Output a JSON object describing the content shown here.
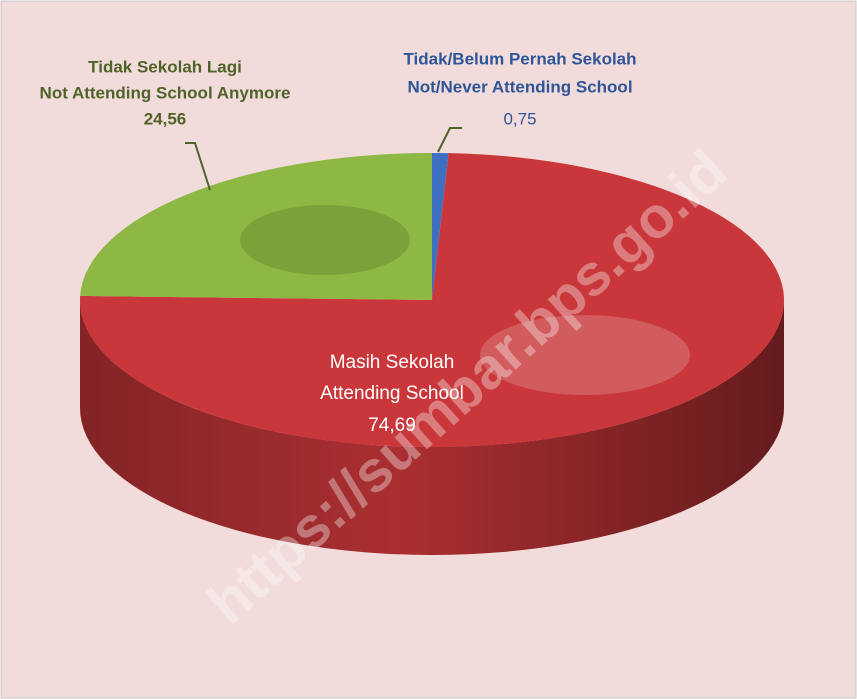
{
  "chart_data": {
    "type": "pie",
    "categories": [
      [
        "Tidak/Belum Pernah Sekolah",
        "Not/Never Attending School"
      ],
      [
        "Masih Sekolah",
        "Attending School"
      ],
      [
        "Tidak Sekolah Lagi",
        "Not Attending School Anymore"
      ]
    ],
    "values": [
      0.75,
      74.69,
      24.56
    ],
    "value_labels": [
      "0,75",
      "74,69",
      "24,56"
    ],
    "colors": [
      "#3f6fc2",
      "#c9373a",
      "#8db843"
    ],
    "watermark": "https://sumbar.bps.go.id"
  }
}
